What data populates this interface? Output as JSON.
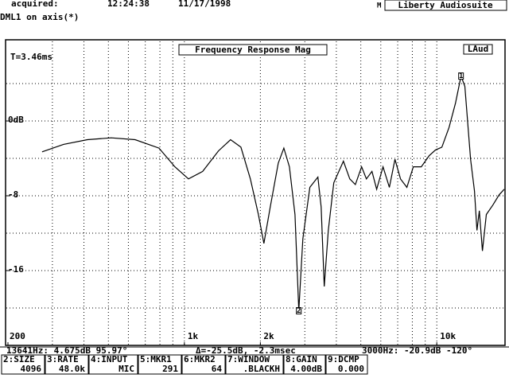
{
  "header": {
    "acquired": "acquired:",
    "time": "12:24:38",
    "date": "11/17/1998",
    "mode": "M",
    "app": "Liberty Audiosuite",
    "subtitle": "DML1 on axis(*)"
  },
  "chart_data": {
    "type": "line",
    "title": "Frequency Response Mag",
    "badge": "LAud",
    "annotation": "T=3.46ms",
    "log_x": true,
    "grid": true,
    "color": "#000000",
    "xlim": [
      200,
      18500
    ],
    "ylim": [
      -24,
      8
    ],
    "xticks": [
      200,
      {
        "value": 1000,
        "label": "1k"
      },
      {
        "value": 2000,
        "label": "2k"
      },
      {
        "value": 10000,
        "label": "10k"
      }
    ],
    "xgrid": [
      300,
      400,
      500,
      600,
      700,
      800,
      900,
      1000,
      2000,
      3000,
      4000,
      5000,
      6000,
      7000,
      8000,
      9000,
      10000
    ],
    "yticks": [
      {
        "value": 0,
        "label": "0dB"
      },
      -8,
      -16
    ],
    "ygrid": [
      4,
      0,
      -4,
      -8,
      -12,
      -16,
      -20
    ],
    "x": [
      273,
      332,
      413,
      513,
      638,
      793,
      917,
      1038,
      1181,
      1365,
      1524,
      1675,
      1826,
      1964,
      2065,
      2188,
      2355,
      2478,
      2606,
      2742,
      2840,
      2946,
      3142,
      3381,
      3483,
      3582,
      3716,
      3909,
      4265,
      4521,
      4756,
      5037,
      5262,
      5535,
      5780,
      6125,
      6490,
      6826,
      7183,
      7614,
      8073,
      8679,
      9333,
      9886,
      10476,
      11180,
      11857,
      12474,
      12920,
      13610,
      14100,
      14420,
      14740,
      15170,
      15710,
      16660,
      17660,
      18500
    ],
    "values": [
      -3.3,
      -2.5,
      -2.0,
      -1.8,
      -2.0,
      -2.9,
      -4.9,
      -6.2,
      -5.4,
      -3.2,
      -2.0,
      -2.8,
      -6.2,
      -10.0,
      -13.1,
      -9.2,
      -4.5,
      -2.9,
      -4.9,
      -10.0,
      -20.3,
      -12.6,
      -7.1,
      -6.0,
      -9.2,
      -17.7,
      -11.7,
      -6.6,
      -4.3,
      -6.2,
      -6.8,
      -4.9,
      -6.2,
      -5.4,
      -7.3,
      -4.9,
      -7.1,
      -4.1,
      -6.2,
      -7.1,
      -4.9,
      -4.9,
      -3.7,
      -3.1,
      -2.8,
      -0.7,
      1.9,
      4.8,
      3.7,
      -4.1,
      -7.5,
      -11.7,
      -9.6,
      -13.9,
      -10.0,
      -9.0,
      -7.9,
      -7.3
    ],
    "markers": [
      {
        "label": "1",
        "x": 12474,
        "y": 4.8
      },
      {
        "label": "2",
        "x": 2840,
        "y": -20.3
      }
    ]
  },
  "status": {
    "cursor": "13641Hz: 4.675dB  95.97°",
    "delta": "Δ=-25.5dB, -2.3msec",
    "ref": "3000Hz: -20.9dB  -120°"
  },
  "keys": [
    [
      "2:SIZE",
      "4096"
    ],
    [
      "3:RATE",
      "48.0k"
    ],
    [
      "4:INPUT",
      "MIC"
    ],
    [
      "5:MKR1",
      "291"
    ],
    [
      "6:MKR2",
      "64"
    ],
    [
      "7:WINDOW",
      ".BLACKH"
    ],
    [
      "8:GAIN",
      "4.00dB"
    ],
    [
      "9:DCMP",
      "0.000"
    ]
  ]
}
